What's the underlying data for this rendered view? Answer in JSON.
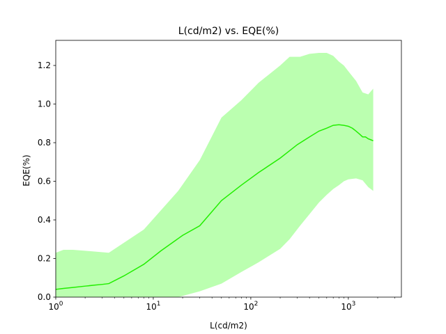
{
  "chart_data": {
    "type": "line",
    "title": "L(cd/m2) vs. EQE(%)",
    "xlabel": "L(cd/m2)",
    "ylabel": "EQE(%)",
    "xscale": "log",
    "xlim": [
      1,
      3500
    ],
    "ylim": [
      0,
      1.33
    ],
    "grid": false,
    "legend": "none",
    "x_tick_labels": [
      {
        "base": "10",
        "exp": "0",
        "value": 1
      },
      {
        "base": "10",
        "exp": "1",
        "value": 10
      },
      {
        "base": "10",
        "exp": "2",
        "value": 100
      },
      {
        "base": "10",
        "exp": "3",
        "value": 1000
      }
    ],
    "y_ticks": [
      "0.0",
      "0.2",
      "0.4",
      "0.6",
      "0.8",
      "1.0",
      "1.2"
    ],
    "colors": {
      "line": "#22ee00",
      "band": "#bbffb0"
    },
    "series": [
      {
        "x": [
          1.0,
          1.2,
          1.5,
          2.0,
          2.5,
          3.0,
          3.5,
          5.0,
          8.0,
          12,
          20,
          30,
          50,
          80,
          120,
          200,
          300,
          400,
          500,
          600,
          700,
          800,
          900,
          1000,
          1100,
          1200,
          1300,
          1400,
          1500,
          1600,
          1700,
          1800
        ],
        "y": [
          0.04,
          0.045,
          0.05,
          0.057,
          0.062,
          0.066,
          0.07,
          0.11,
          0.17,
          0.24,
          0.32,
          0.37,
          0.5,
          0.58,
          0.645,
          0.72,
          0.79,
          0.83,
          0.86,
          0.875,
          0.89,
          0.893,
          0.89,
          0.885,
          0.875,
          0.86,
          0.845,
          0.83,
          0.83,
          0.82,
          0.815,
          0.81
        ]
      }
    ],
    "band": {
      "x": [
        1.0,
        1.2,
        1.5,
        2.0,
        3.5,
        8.0,
        18,
        30,
        50,
        80,
        120,
        200,
        250,
        320,
        400,
        500,
        600,
        700,
        800,
        900,
        1000,
        1200,
        1400,
        1600,
        1800
      ],
      "upper": [
        0.23,
        0.245,
        0.245,
        0.24,
        0.23,
        0.35,
        0.55,
        0.71,
        0.93,
        1.02,
        1.11,
        1.2,
        1.245,
        1.245,
        1.26,
        1.265,
        1.265,
        1.25,
        1.22,
        1.2,
        1.17,
        1.12,
        1.06,
        1.05,
        1.08
      ],
      "lower": [
        0.0,
        0.0,
        0.0,
        0.0,
        0.0,
        0.0,
        0.0,
        0.03,
        0.07,
        0.13,
        0.18,
        0.25,
        0.3,
        0.37,
        0.43,
        0.49,
        0.53,
        0.56,
        0.58,
        0.6,
        0.61,
        0.615,
        0.605,
        0.57,
        0.55
      ]
    }
  }
}
